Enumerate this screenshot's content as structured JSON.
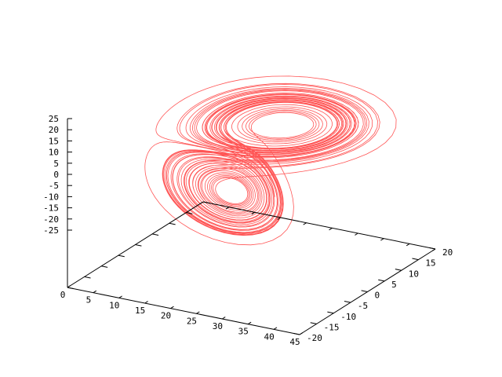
{
  "chart_data": {
    "type": "line3d",
    "title": "",
    "series": [
      {
        "system": "lorenz",
        "parameters": {
          "sigma": 10,
          "rho": 28,
          "beta": 2.6667
        },
        "axis_mapping": {
          "front_axis": "z",
          "right_axis": "x",
          "vertical_axis": "y"
        },
        "color": "#ff5555"
      }
    ],
    "axes": {
      "front": {
        "range": [
          0,
          45
        ],
        "ticks": [
          "0",
          "5",
          "10",
          "15",
          "20",
          "25",
          "30",
          "35",
          "40",
          "45"
        ]
      },
      "right": {
        "range": [
          -20,
          20
        ],
        "ticks": [
          "-20",
          "-15",
          "-10",
          "-5",
          "0",
          "5",
          "10",
          "15",
          "20"
        ]
      },
      "vertical": {
        "range": [
          -25,
          25
        ],
        "ticks": [
          "25",
          "20",
          "15",
          "10",
          "5",
          "0",
          "-5",
          "-10",
          "-15",
          "-20",
          "-25"
        ]
      }
    },
    "grid": false,
    "legend": "none",
    "colors": {
      "curve": "#ff5555",
      "axes": "#000000",
      "background": "#ffffff"
    }
  }
}
